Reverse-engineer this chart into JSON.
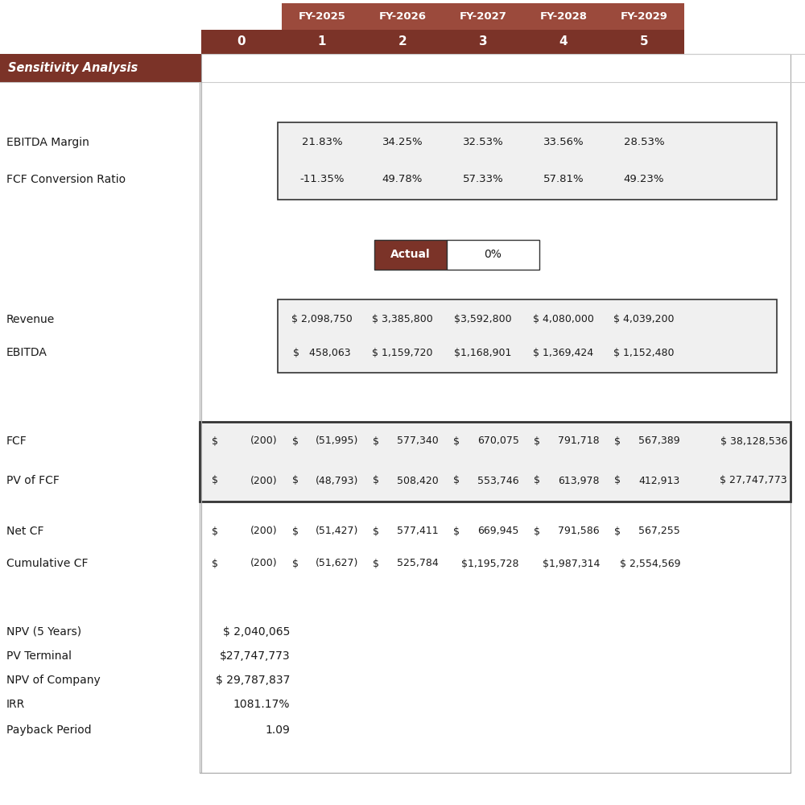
{
  "brown_header": "#7B3328",
  "brown_fy": "#9B4A3C",
  "bg_color": "#FFFFFF",
  "light_gray": "#F0F0F0",
  "text_dark": "#1A1A1A",
  "white": "#FFFFFF",
  "border_dark": "#333333",
  "border_light": "#AAAAAA",
  "header_years": [
    "FY-2025",
    "FY-2026",
    "FY-2027",
    "FY-2028",
    "FY-2029"
  ],
  "header_nums": [
    "0",
    "1",
    "2",
    "3",
    "4",
    "5"
  ],
  "sensitivity_label": "Sensitivity Analysis",
  "ebitda_margin_label": "EBITDA Margin",
  "fcf_conversion_label": "FCF Conversion Ratio",
  "ebitda_margin_values": [
    "21.83%",
    "34.25%",
    "32.53%",
    "33.56%",
    "28.53%"
  ],
  "fcf_conversion_values": [
    "-11.35%",
    "49.78%",
    "57.33%",
    "57.81%",
    "49.23%"
  ],
  "actual_label": "Actual",
  "actual_pct": "0%",
  "revenue_label": "Revenue",
  "ebitda_label": "EBITDA",
  "revenue_values": [
    "$ 2,098,750",
    "$ 3,385,800",
    "$3,592,800",
    "$ 4,080,000",
    "$ 4,039,200"
  ],
  "ebitda_values": [
    "$   458,063",
    "$ 1,159,720",
    "$1,168,901",
    "$ 1,369,424",
    "$ 1,152,480"
  ],
  "fcf_label": "FCF",
  "pv_fcf_label": "PV of FCF",
  "net_cf_label": "Net CF",
  "cumulative_cf_label": "Cumulative CF",
  "npv_label": "NPV (5 Years)",
  "npv_value": "$ 2,040,065",
  "pv_terminal_label": "PV Terminal",
  "pv_terminal_value": "$27,747,773",
  "npv_company_label": "NPV of Company",
  "npv_company_value": "$ 29,787,837",
  "irr_label": "IRR",
  "irr_value": "1081.17%",
  "payback_label": "Payback Period",
  "payback_value": "1.09"
}
